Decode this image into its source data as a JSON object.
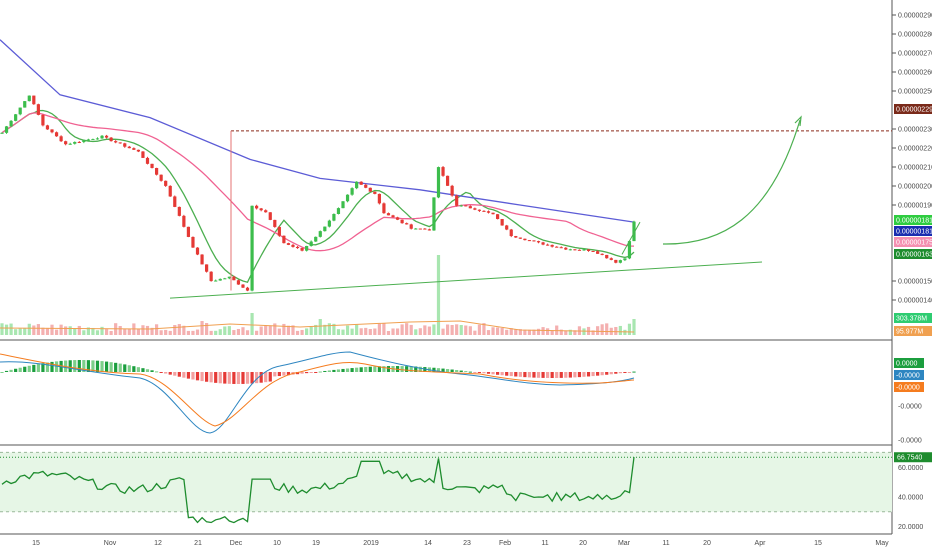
{
  "chart_data": [
    {
      "type": "candlestick",
      "title": "",
      "price_axis": {
        "ticks": [
          "0.00000290",
          "0.00000280",
          "0.00000270",
          "0.00000260",
          "0.00000250",
          "0.00000230",
          "0.00000220",
          "0.00000210",
          "0.00000200",
          "0.00000190",
          "0.00000150",
          "0.00000140"
        ],
        "range": [
          1.3e-06,
          2.95e-06
        ]
      },
      "time_axis": {
        "ticks": [
          "15",
          "Nov",
          "12",
          "21",
          "Dec",
          "10",
          "19",
          "2019",
          "14",
          "23",
          "Feb",
          "11",
          "20",
          "Mar",
          "11",
          "20",
          "Apr",
          "15",
          "May"
        ]
      },
      "resistance_level": 2.29e-06,
      "indicators": {
        "ma_fast_color": "#4caf50",
        "ma_mid_color": "#f06292",
        "ma_slow_color": "#5c5cd6",
        "bull_color": "#3cbd4c",
        "bear_color": "#e53935"
      },
      "right_labels": [
        {
          "text": "0.00000229",
          "color": "#7a2a1a"
        },
        {
          "text": "0.00000181",
          "color": "#2ecc40"
        },
        {
          "text": "0.00000181",
          "color": "#1a2db0"
        },
        {
          "text": "0.00000175",
          "color": "#f48fb1"
        },
        {
          "text": "0.00000163",
          "color": "#1e8c2e"
        },
        {
          "text": "303.378M",
          "color": "#2ecc71"
        },
        {
          "text": "95.977M",
          "color": "#f0a050"
        }
      ],
      "volume_series": [
        "Volume",
        "Volume MA"
      ]
    },
    {
      "type": "macd",
      "axis_ticks": [
        "-0.0000",
        "-0.0000"
      ],
      "right_labels": [
        {
          "text": "0.0000",
          "color": "#1b9e3e"
        },
        {
          "text": "-0.0000",
          "color": "#2e86c1"
        },
        {
          "text": "-0.0000",
          "color": "#f57c1f"
        }
      ]
    },
    {
      "type": "rsi",
      "axis_ticks": [
        "60.0000",
        "40.0000",
        "20.0000"
      ],
      "current": "66.7540",
      "upper_band": 70,
      "lower_band": 30
    }
  ]
}
